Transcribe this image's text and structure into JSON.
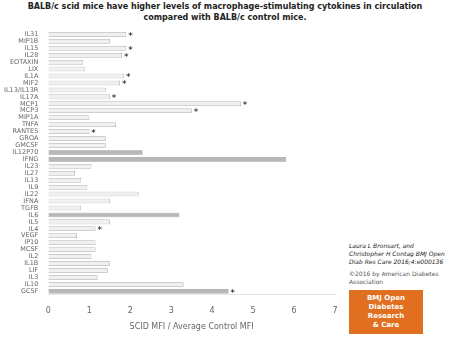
{
  "chart_data": {
    "type": "bar",
    "orientation": "horizontal",
    "title": "BALB/c scid mice have higher levels of macrophage-stimulating cytokines in circulation\ncompared with BALB/c control mice.",
    "xlabel": "SCID MFI / Average Control MFI",
    "categories": [
      "IL31",
      "MIP1B",
      "IL15",
      "IL28",
      "EOTAXIN",
      "LIX",
      "IL1A",
      "MIF2",
      "IL13/IL13R",
      "IL17A",
      "MCP1",
      "MCP3",
      "MIP1A",
      "TNFA",
      "RANTES",
      "GROA",
      "GMCSF",
      "IL12P70",
      "IFNG",
      "IL23",
      "IL27",
      "IL13",
      "IL9",
      "IL22",
      "IFNA",
      "TGFB",
      "IL6",
      "IL5",
      "IL4",
      "VEGF",
      "IP10",
      "MCSF",
      "IL2",
      "IL1B",
      "LIF",
      "IL3",
      "IL10",
      "GCSF"
    ],
    "values": [
      1.9,
      1.5,
      1.9,
      1.8,
      0.85,
      0.9,
      1.85,
      1.75,
      1.4,
      1.5,
      4.7,
      3.5,
      1.0,
      1.65,
      1.0,
      1.4,
      1.4,
      2.3,
      5.8,
      1.05,
      0.65,
      0.8,
      0.95,
      2.2,
      1.5,
      0.8,
      3.2,
      1.5,
      1.15,
      0.7,
      1.15,
      1.15,
      1.05,
      1.5,
      1.45,
      1.2,
      3.3,
      4.4
    ],
    "colors": [
      "#f0f0f0",
      "#f0f0f0",
      "#f0f0f0",
      "#f0f0f0",
      "#f0f0f0",
      "#f0f0f0",
      "#f0f0f0",
      "#f0f0f0",
      "#f0f0f0",
      "#f0f0f0",
      "#f0f0f0",
      "#f0f0f0",
      "#f0f0f0",
      "#f0f0f0",
      "#f0f0f0",
      "#f0f0f0",
      "#f0f0f0",
      "#b8b8b8",
      "#b8b8b8",
      "#f0f0f0",
      "#f0f0f0",
      "#f0f0f0",
      "#f0f0f0",
      "#f0f0f0",
      "#f0f0f0",
      "#f0f0f0",
      "#b8b8b8",
      "#f0f0f0",
      "#f0f0f0",
      "#f0f0f0",
      "#f0f0f0",
      "#f0f0f0",
      "#f0f0f0",
      "#f0f0f0",
      "#f0f0f0",
      "#f0f0f0",
      "#f0f0f0",
      "#b8b8b8"
    ],
    "xlim": [
      0,
      7
    ],
    "xticks": [
      0,
      1,
      2,
      3,
      4,
      5,
      6,
      7
    ],
    "grid": false,
    "annotations": [
      {
        "category": "IL31",
        "text": "*"
      },
      {
        "category": "IL15",
        "text": "*"
      },
      {
        "category": "IL28",
        "text": "*"
      },
      {
        "category": "IL1A",
        "text": "*"
      },
      {
        "category": "MIF2",
        "text": "*"
      },
      {
        "category": "IL17A",
        "text": "*"
      },
      {
        "category": "MCP1",
        "text": "*"
      },
      {
        "category": "MCP3",
        "text": "*"
      },
      {
        "category": "RANTES",
        "text": "*"
      },
      {
        "category": "IL4",
        "text": "*"
      },
      {
        "category": "GCSF",
        "text": "*"
      }
    ],
    "footnotes": [
      "Laura L Bronsart, and Christopher H Contag BMJ Open\nDiab Res Care 2016;4:e000136",
      "©2016 by American Diabetes Association"
    ],
    "logo": {
      "text": "BMJ Open\nDiabetes\nResearch\n& Care",
      "color": "#e07020"
    }
  }
}
